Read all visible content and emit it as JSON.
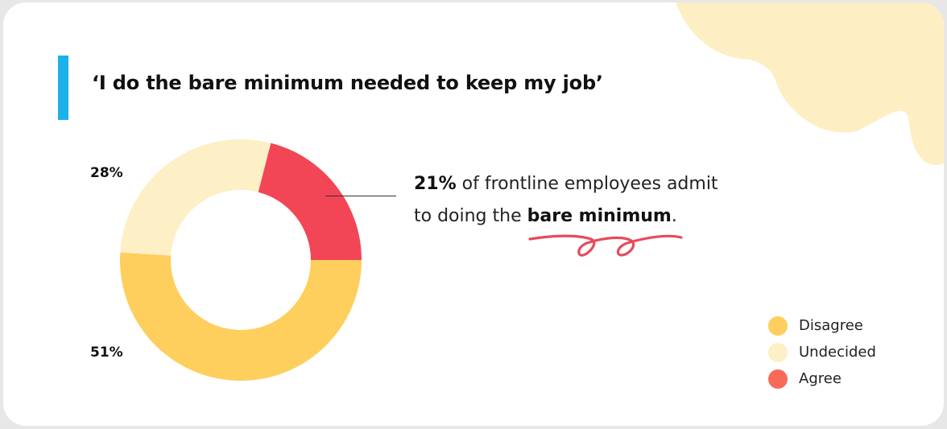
{
  "title": "‘I do the bare minimum needed to keep my job’",
  "callout": {
    "stat": "21%",
    "text_1": " of frontline employees admit",
    "text_2": "to doing the ",
    "emphasis": "bare minimum",
    "text_end": "."
  },
  "colors": {
    "accent_bar": "#1cb1e8",
    "blob": "#fdefc3",
    "squiggle": "#e84a5b"
  },
  "chart_data": {
    "type": "pie",
    "style": "donut",
    "slices": [
      {
        "label": "Agree",
        "value": 21,
        "color": "#f24657",
        "legend_color": "#f86a58"
      },
      {
        "label": "Disagree",
        "value": 51,
        "color": "#fecf5c",
        "legend_color": "#fecf5c"
      },
      {
        "label": "Undecided",
        "value": 28,
        "color": "#fdefc6",
        "legend_color": "#fdefc6"
      }
    ],
    "data_labels": {
      "undecided": "28%",
      "disagree": "51%"
    },
    "legend": {
      "placement": "bottom-right",
      "items": [
        {
          "label": "Disagree",
          "color": "#fecf5c"
        },
        {
          "label": "Undecided",
          "color": "#fdefc6"
        },
        {
          "label": "Agree",
          "color": "#f86a58"
        }
      ]
    }
  }
}
